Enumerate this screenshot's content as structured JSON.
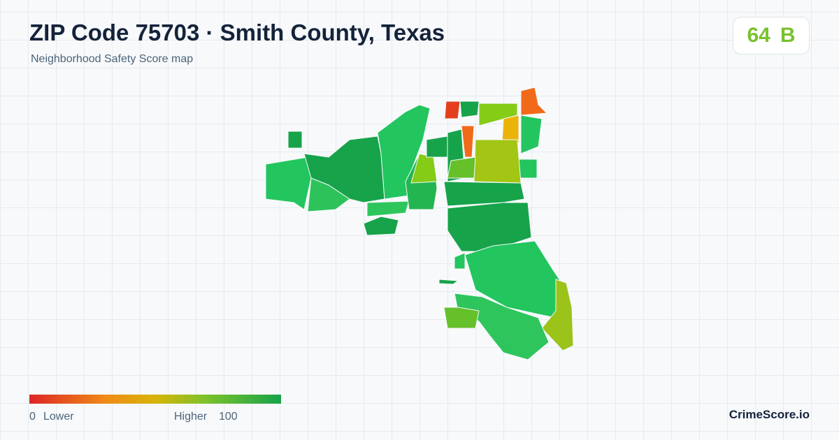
{
  "header": {
    "title": "ZIP Code 75703 · Smith County, Texas",
    "subtitle": "Neighborhood Safety Score map"
  },
  "score": {
    "value": 64,
    "grade": "B"
  },
  "legend": {
    "min": 0,
    "low_label": "Lower",
    "high_label": "Higher",
    "max": 100
  },
  "brand": "CrimeScore.io"
}
